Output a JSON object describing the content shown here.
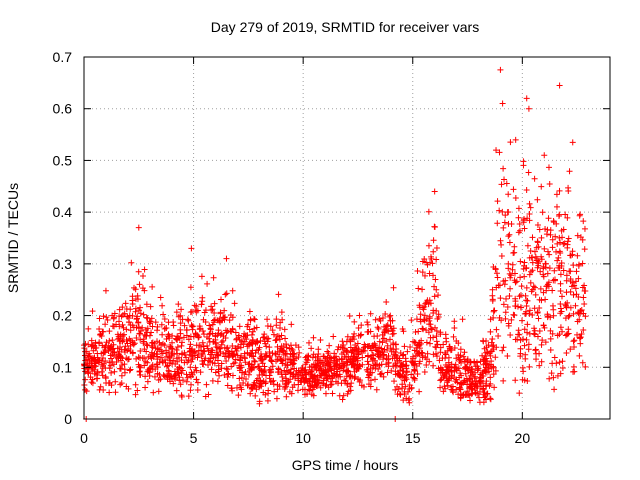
{
  "chart_data": {
    "type": "scatter",
    "title": "Day 279 of 2019, SRMTID for receiver vars",
    "xlabel": "GPS time / hours",
    "ylabel": "SRMTID / TECUs",
    "xlim": [
      0,
      24
    ],
    "ylim": [
      0,
      0.7
    ],
    "xticks": [
      0,
      5,
      10,
      15,
      20
    ],
    "yticks": [
      0,
      0.1,
      0.2,
      0.3,
      0.4,
      0.5,
      0.6,
      0.7
    ],
    "grid": true,
    "marker": "+",
    "series_color": "#ff0000",
    "profile": [
      {
        "t": 0.0,
        "base": 0.1,
        "spread": 0.035
      },
      {
        "t": 1.0,
        "base": 0.12,
        "spread": 0.05
      },
      {
        "t": 2.0,
        "base": 0.14,
        "spread": 0.06
      },
      {
        "t": 2.5,
        "base": 0.17,
        "spread": 0.08
      },
      {
        "t": 3.0,
        "base": 0.13,
        "spread": 0.06
      },
      {
        "t": 4.0,
        "base": 0.11,
        "spread": 0.05
      },
      {
        "t": 5.0,
        "base": 0.13,
        "spread": 0.06
      },
      {
        "t": 6.0,
        "base": 0.14,
        "spread": 0.06
      },
      {
        "t": 7.0,
        "base": 0.12,
        "spread": 0.05
      },
      {
        "t": 8.0,
        "base": 0.1,
        "spread": 0.05
      },
      {
        "t": 9.0,
        "base": 0.12,
        "spread": 0.05
      },
      {
        "t": 10.0,
        "base": 0.08,
        "spread": 0.03
      },
      {
        "t": 11.0,
        "base": 0.09,
        "spread": 0.03
      },
      {
        "t": 12.0,
        "base": 0.1,
        "spread": 0.04
      },
      {
        "t": 13.0,
        "base": 0.12,
        "spread": 0.05
      },
      {
        "t": 14.0,
        "base": 0.16,
        "spread": 0.06
      },
      {
        "t": 14.3,
        "base": 0.09,
        "spread": 0.04
      },
      {
        "t": 15.0,
        "base": 0.09,
        "spread": 0.04
      },
      {
        "t": 15.6,
        "base": 0.2,
        "spread": 0.1
      },
      {
        "t": 16.0,
        "base": 0.24,
        "spread": 0.1
      },
      {
        "t": 16.3,
        "base": 0.1,
        "spread": 0.04
      },
      {
        "t": 17.0,
        "base": 0.09,
        "spread": 0.04
      },
      {
        "t": 18.0,
        "base": 0.07,
        "spread": 0.03
      },
      {
        "t": 18.5,
        "base": 0.1,
        "spread": 0.05
      },
      {
        "t": 19.0,
        "base": 0.27,
        "spread": 0.15
      },
      {
        "t": 20.0,
        "base": 0.24,
        "spread": 0.13
      },
      {
        "t": 21.0,
        "base": 0.25,
        "spread": 0.14
      },
      {
        "t": 22.0,
        "base": 0.26,
        "spread": 0.13
      },
      {
        "t": 22.9,
        "base": 0.24,
        "spread": 0.12
      }
    ],
    "outliers": [
      {
        "x": 19.0,
        "y": 0.675
      },
      {
        "x": 19.1,
        "y": 0.61
      },
      {
        "x": 20.2,
        "y": 0.62
      },
      {
        "x": 21.7,
        "y": 0.645
      },
      {
        "x": 20.3,
        "y": 0.6
      },
      {
        "x": 22.3,
        "y": 0.535
      },
      {
        "x": 2.5,
        "y": 0.37
      },
      {
        "x": 4.9,
        "y": 0.33
      },
      {
        "x": 6.5,
        "y": 0.31
      },
      {
        "x": 16.0,
        "y": 0.44
      },
      {
        "x": 18.8,
        "y": 0.52
      },
      {
        "x": 21.0,
        "y": 0.51
      },
      {
        "x": 0.1,
        "y": 0.0
      },
      {
        "x": 14.2,
        "y": 0.0
      }
    ],
    "time_range": [
      0.0,
      22.9
    ],
    "n_points": 2400
  }
}
